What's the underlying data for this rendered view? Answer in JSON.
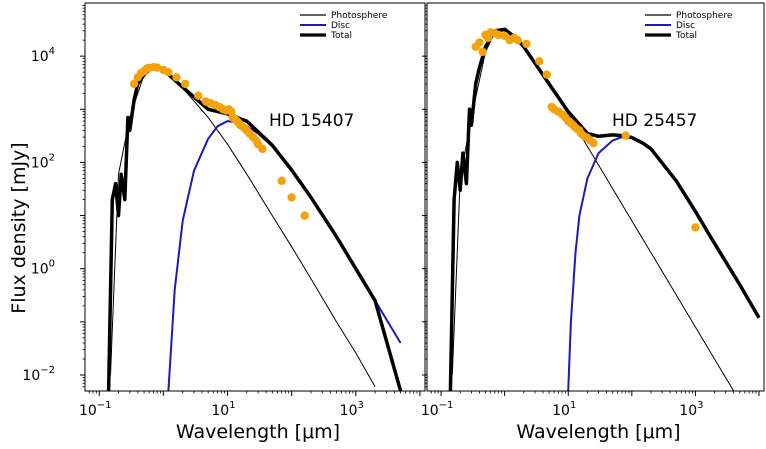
{
  "figure": {
    "ylabel": "Flux density [mJy]",
    "xlabel": "Wavelength [μm]"
  },
  "chart_data": [
    {
      "type": "line",
      "annotation": "HD 15407",
      "xlabel": "Wavelength [μm]",
      "ylabel": "Flux density [mJy]",
      "xscale": "log",
      "yscale": "log",
      "xlim": [
        0.06,
        12000
      ],
      "ylim": [
        0.005,
        100000
      ],
      "xticks": [
        {
          "value": 0.1,
          "base": "10",
          "exp": "−1"
        },
        {
          "value": 10,
          "base": "10",
          "exp": "1"
        },
        {
          "value": 1000,
          "base": "10",
          "exp": "3"
        }
      ],
      "yticks": [
        {
          "value": 0.01,
          "base": "10",
          "exp": "−2"
        },
        {
          "value": 1,
          "base": "10",
          "exp": "0"
        },
        {
          "value": 100,
          "base": "10",
          "exp": "2"
        },
        {
          "value": 10000,
          "base": "10",
          "exp": "4"
        }
      ],
      "legend": {
        "position": "top-right",
        "entries": [
          "Photosphere",
          "Disc",
          "Total"
        ]
      },
      "series": [
        {
          "name": "Photosphere",
          "color": "#000000",
          "x": [
            0.15,
            0.2,
            0.3,
            0.5,
            0.7,
            1.0,
            2,
            5,
            10,
            20,
            50,
            100,
            200,
            500,
            1000,
            2000
          ],
          "y": [
            0.01,
            60,
            700,
            4500,
            6500,
            5500,
            2500,
            700,
            220,
            60,
            10,
            2.6,
            0.65,
            0.1,
            0.026,
            0.006
          ]
        },
        {
          "name": "Disc",
          "color": "#1a1ab8",
          "x": [
            1.2,
            1.5,
            2,
            3,
            5,
            7,
            10,
            15,
            20,
            30,
            50,
            100,
            200,
            500,
            1000,
            2000,
            5000
          ],
          "y": [
            0.005,
            0.4,
            8,
            70,
            280,
            480,
            600,
            560,
            480,
            350,
            200,
            70,
            22,
            4,
            1.0,
            0.25,
            0.04
          ]
        },
        {
          "name": "Total",
          "color": "#000000",
          "x": [
            0.14,
            0.16,
            0.18,
            0.2,
            0.22,
            0.25,
            0.28,
            0.3,
            0.35,
            0.4,
            0.5,
            0.7,
            1.0,
            2,
            5,
            10,
            20,
            50,
            100,
            200,
            500,
            1000,
            2000,
            5000
          ],
          "y": [
            0.005,
            20,
            40,
            10,
            60,
            20,
            700,
            400,
            1500,
            3000,
            4500,
            6500,
            5500,
            2600,
            1000,
            820,
            600,
            210,
            72,
            22,
            4,
            1.0,
            0.25,
            0.005
          ]
        }
      ],
      "observations": {
        "color": "#f5a20a",
        "x": [
          0.35,
          0.4,
          0.45,
          0.5,
          0.55,
          0.6,
          0.7,
          0.8,
          1.0,
          1.2,
          1.6,
          2.2,
          3.5,
          4.6,
          5.5,
          6.5,
          7.5,
          8.5,
          9.5,
          10.5,
          11.5,
          12,
          13,
          14,
          15,
          16,
          18,
          20,
          22,
          25,
          28,
          30,
          35,
          70,
          100,
          160
        ],
        "y": [
          3000,
          4000,
          4800,
          5200,
          5800,
          6000,
          6200,
          6100,
          5500,
          5000,
          4000,
          3000,
          1800,
          1400,
          1300,
          1200,
          1100,
          1000,
          950,
          1000,
          900,
          700,
          650,
          600,
          550,
          500,
          450,
          400,
          350,
          300,
          260,
          220,
          180,
          45,
          22,
          10
        ]
      }
    },
    {
      "type": "line",
      "annotation": "HD 25457",
      "xlabel": "Wavelength [μm]",
      "xscale": "log",
      "yscale": "log",
      "xlim": [
        0.06,
        12000
      ],
      "ylim": [
        0.005,
        100000
      ],
      "xticks": [
        {
          "value": 0.1,
          "base": "10",
          "exp": "−1"
        },
        {
          "value": 10,
          "base": "10",
          "exp": "1"
        },
        {
          "value": 1000,
          "base": "10",
          "exp": "3"
        }
      ],
      "legend": {
        "position": "top-right",
        "entries": [
          "Photosphere",
          "Disc",
          "Total"
        ]
      },
      "series": [
        {
          "name": "Photosphere",
          "color": "#000000",
          "x": [
            0.15,
            0.2,
            0.3,
            0.5,
            0.7,
            1.0,
            1.5,
            2,
            5,
            10,
            20,
            50,
            100,
            200,
            500,
            1000,
            2000,
            4000
          ],
          "y": [
            0.01,
            50,
            700,
            12000,
            28000,
            30000,
            22000,
            15000,
            3000,
            800,
            200,
            32,
            8,
            2,
            0.32,
            0.08,
            0.02,
            0.005
          ]
        },
        {
          "name": "Disc",
          "color": "#1a1ab8",
          "x": [
            10,
            11,
            13,
            15,
            20,
            30,
            50,
            70,
            100,
            150,
            200,
            500,
            1000,
            2000,
            5000,
            10000
          ],
          "y": [
            0.005,
            0.1,
            2,
            10,
            50,
            150,
            260,
            300,
            290,
            230,
            180,
            45,
            12,
            3,
            0.5,
            0.12
          ]
        },
        {
          "name": "Total",
          "color": "#000000",
          "x": [
            0.14,
            0.16,
            0.18,
            0.2,
            0.22,
            0.25,
            0.28,
            0.3,
            0.35,
            0.4,
            0.5,
            0.7,
            1.0,
            1.5,
            2,
            5,
            10,
            20,
            30,
            50,
            70,
            100,
            150,
            200,
            500,
            1000,
            2000,
            5000,
            10000
          ],
          "y": [
            0.005,
            20,
            100,
            30,
            150,
            40,
            1000,
            500,
            3000,
            6000,
            15000,
            30000,
            32000,
            22000,
            15000,
            3000,
            900,
            350,
            310,
            330,
            320,
            295,
            230,
            180,
            45,
            12,
            3,
            0.5,
            0.12
          ]
        }
      ],
      "observations": {
        "color": "#f5a20a",
        "x": [
          0.35,
          0.4,
          0.45,
          0.5,
          0.55,
          0.6,
          0.7,
          0.8,
          1.0,
          1.2,
          1.4,
          1.6,
          2.2,
          3.5,
          4.6,
          5.5,
          6,
          7,
          8,
          9,
          10,
          11,
          12,
          13,
          14,
          15,
          16,
          18,
          20,
          22,
          25,
          80,
          1000
        ],
        "y": [
          15000,
          18000,
          12000,
          25000,
          22000,
          28000,
          27000,
          25000,
          24000,
          20000,
          22000,
          20000,
          17000,
          8000,
          4500,
          1100,
          1000,
          900,
          800,
          700,
          600,
          550,
          500,
          450,
          420,
          400,
          350,
          310,
          290,
          260,
          230,
          320,
          6
        ]
      }
    }
  ]
}
